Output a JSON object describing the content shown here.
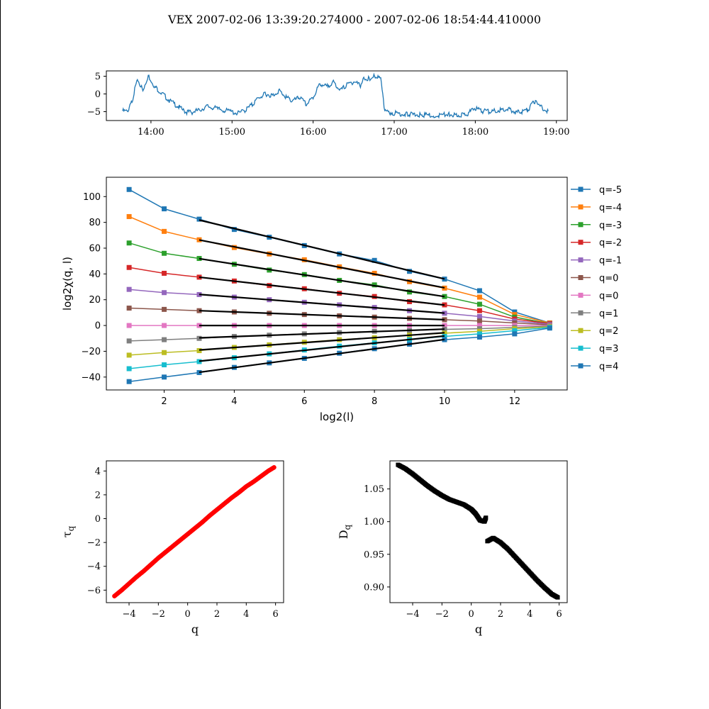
{
  "figure_title": "VEX  2007-02-06 13:39:20.274000 - 2007-02-06 18:54:44.410000",
  "chart_data": [
    {
      "id": "timeseries",
      "type": "line",
      "color": "#1f77b4",
      "xlim": [
        "13:27",
        "19:08"
      ],
      "ylim": [
        -7.5,
        6.5
      ],
      "xticks": [
        "14:00",
        "15:00",
        "16:00",
        "17:00",
        "18:00",
        "19:00"
      ],
      "yticks": [
        -5,
        0,
        5
      ],
      "x": [
        "13:39",
        "13:43",
        "13:46",
        "13:50",
        "13:54",
        "13:58",
        "14:03",
        "14:08",
        "14:14",
        "14:20",
        "14:25",
        "14:30",
        "14:36",
        "14:42",
        "14:50",
        "14:58",
        "15:05",
        "15:10",
        "15:15",
        "15:20",
        "15:25",
        "15:30",
        "15:35",
        "15:40",
        "15:45",
        "15:50",
        "15:55",
        "16:00",
        "16:05",
        "16:10",
        "16:15",
        "16:20",
        "16:25",
        "16:30",
        "16:35",
        "16:38",
        "16:42",
        "16:45",
        "16:48",
        "16:50",
        "16:53",
        "17:00",
        "17:10",
        "17:20",
        "17:30",
        "17:40",
        "17:45",
        "17:50",
        "17:55",
        "18:00",
        "18:05",
        "18:10",
        "18:15",
        "18:20",
        "18:25",
        "18:30",
        "18:35",
        "18:40",
        "18:43",
        "18:46",
        "18:50",
        "18:54"
      ],
      "y": [
        -4.8,
        -5.0,
        -2.0,
        4.2,
        1.0,
        5.2,
        2.0,
        0.2,
        -2.0,
        -3.5,
        -5.0,
        -5.2,
        -4.5,
        -3.5,
        -4.3,
        -4.9,
        -5.5,
        -4.5,
        -3.0,
        -1.0,
        0.0,
        -0.5,
        1.0,
        -1.0,
        -2.0,
        -1.0,
        -3.0,
        -1.0,
        3.0,
        2.0,
        3.5,
        1.0,
        2.5,
        3.5,
        2.5,
        4.5,
        4.2,
        5.0,
        4.5,
        4.0,
        -5.0,
        -5.4,
        -5.8,
        -5.9,
        -6.1,
        -5.8,
        -6.0,
        -6.0,
        -5.4,
        -4.0,
        -4.8,
        -5.0,
        -4.8,
        -4.5,
        -4.3,
        -5.2,
        -5.0,
        -4.3,
        -2.0,
        -2.5,
        -4.0,
        -4.8
      ]
    },
    {
      "id": "scaling",
      "type": "line",
      "xlabel": "log2(l)",
      "ylabel": "log2χ(q, l)",
      "xlim": [
        0.35,
        13.5
      ],
      "ylim": [
        -50,
        115
      ],
      "xticks": [
        2,
        4,
        6,
        8,
        10,
        12
      ],
      "yticks": [
        -40,
        -20,
        0,
        20,
        40,
        60,
        80,
        100
      ],
      "x": [
        1,
        2,
        3,
        4,
        5,
        6,
        7,
        8,
        9,
        10,
        11,
        12,
        13
      ],
      "fit_range": [
        3,
        10
      ],
      "fit_color": "#000000",
      "series": [
        {
          "name": "q=-5",
          "color": "#1f77b4",
          "values": [
            105.5,
            90.5,
            82.5,
            74.5,
            68.5,
            62,
            55.5,
            50.5,
            42,
            36,
            27,
            10.5,
            2
          ]
        },
        {
          "name": "q=-4",
          "color": "#ff7f0e",
          "values": [
            84.5,
            73,
            66.5,
            60.5,
            55.5,
            51,
            45.5,
            40.5,
            34,
            29,
            22,
            8.5,
            2
          ]
        },
        {
          "name": "q=-3",
          "color": "#2ca02c",
          "values": [
            64,
            56,
            52,
            47.5,
            43,
            39.5,
            35,
            31.5,
            26,
            22.5,
            16.5,
            6.5,
            1.5
          ]
        },
        {
          "name": "q=-2",
          "color": "#d62728",
          "values": [
            45,
            40.5,
            37.5,
            34.5,
            31,
            28.5,
            25,
            22.5,
            18.5,
            16,
            11.5,
            5,
            1.5
          ]
        },
        {
          "name": "q=-1",
          "color": "#9467bd",
          "values": [
            28,
            25.5,
            24,
            22,
            20,
            18,
            16,
            14,
            11.5,
            9.5,
            7,
            3.5,
            1
          ]
        },
        {
          "name": "q=0",
          "color": "#8c564b",
          "values": [
            13.5,
            12.5,
            11.5,
            10.5,
            9.5,
            8.5,
            7.5,
            6.5,
            5.5,
            4.5,
            3.5,
            2,
            0.5
          ]
        },
        {
          "name": "q=0",
          "color": "#e377c2",
          "values": [
            0,
            0,
            0,
            0,
            0,
            0,
            0,
            0,
            0,
            0,
            0,
            0,
            0
          ]
        },
        {
          "name": "q=1",
          "color": "#7f7f7f",
          "values": [
            -12,
            -11,
            -10,
            -8.5,
            -7.5,
            -6.5,
            -5.5,
            -4.5,
            -4,
            -3,
            -2.5,
            -1.5,
            -0.5
          ]
        },
        {
          "name": "q=2",
          "color": "#bcbd22",
          "values": [
            -23,
            -21,
            -19.5,
            -17,
            -15,
            -13,
            -11,
            -9.5,
            -7.5,
            -6,
            -4.5,
            -2.5,
            -1
          ]
        },
        {
          "name": "q=3",
          "color": "#17becf",
          "values": [
            -33.5,
            -30.5,
            -28,
            -25,
            -22,
            -19,
            -16,
            -13.5,
            -11,
            -8.5,
            -6.5,
            -4,
            -1.5
          ]
        },
        {
          "name": "q=4",
          "color": "#1f77b4",
          "values": [
            -43.5,
            -40,
            -36.5,
            -32.5,
            -29,
            -25.5,
            -21.5,
            -18,
            -14.5,
            -11,
            -9,
            -6.5,
            -2
          ]
        }
      ]
    },
    {
      "id": "tau",
      "type": "scatter",
      "xlabel": "q",
      "ylabel": "τq",
      "color": "#ff0000",
      "xlim": [
        -5.55,
        6.55
      ],
      "ylim": [
        -7.05,
        4.85
      ],
      "xticks": [
        -4,
        -2,
        0,
        2,
        4,
        6
      ],
      "yticks": [
        -6,
        -4,
        -2,
        0,
        2,
        4
      ],
      "x": [
        -5,
        -4.5,
        -4,
        -3.5,
        -3,
        -2.5,
        -2,
        -1.5,
        -1,
        -0.5,
        0,
        0.5,
        1,
        1.5,
        2,
        2.5,
        3,
        3.5,
        4,
        4.5,
        5,
        5.5,
        5.9
      ],
      "y": [
        -6.5,
        -6.0,
        -5.45,
        -4.9,
        -4.4,
        -3.85,
        -3.3,
        -2.8,
        -2.3,
        -1.8,
        -1.3,
        -0.8,
        -0.3,
        0.25,
        0.75,
        1.25,
        1.75,
        2.2,
        2.7,
        3.1,
        3.55,
        4.0,
        4.3
      ]
    },
    {
      "id": "dq",
      "type": "scatter",
      "xlabel": "q",
      "ylabel": "Dq",
      "color": "#000000",
      "xlim": [
        -5.55,
        6.55
      ],
      "ylim": [
        0.876,
        1.093
      ],
      "xticks": [
        -4,
        -2,
        0,
        2,
        4,
        6
      ],
      "yticks": [
        0.9,
        0.95,
        1.0,
        1.05
      ],
      "x": [
        -5,
        -4.5,
        -4,
        -3.5,
        -3,
        -2.5,
        -2,
        -1.5,
        -1,
        -0.5,
        0,
        0.3,
        0.6,
        0.9,
        1.0,
        1.1,
        1.5,
        2,
        2.5,
        3,
        3.5,
        4,
        4.5,
        5,
        5.5,
        5.9
      ],
      "y": [
        1.087,
        1.081,
        1.073,
        1.064,
        1.055,
        1.047,
        1.04,
        1.034,
        1.03,
        1.026,
        1.019,
        1.012,
        1.002,
        1.0,
        1.006,
        0.97,
        0.975,
        0.968,
        0.958,
        0.946,
        0.934,
        0.922,
        0.91,
        0.899,
        0.889,
        0.884
      ]
    }
  ]
}
